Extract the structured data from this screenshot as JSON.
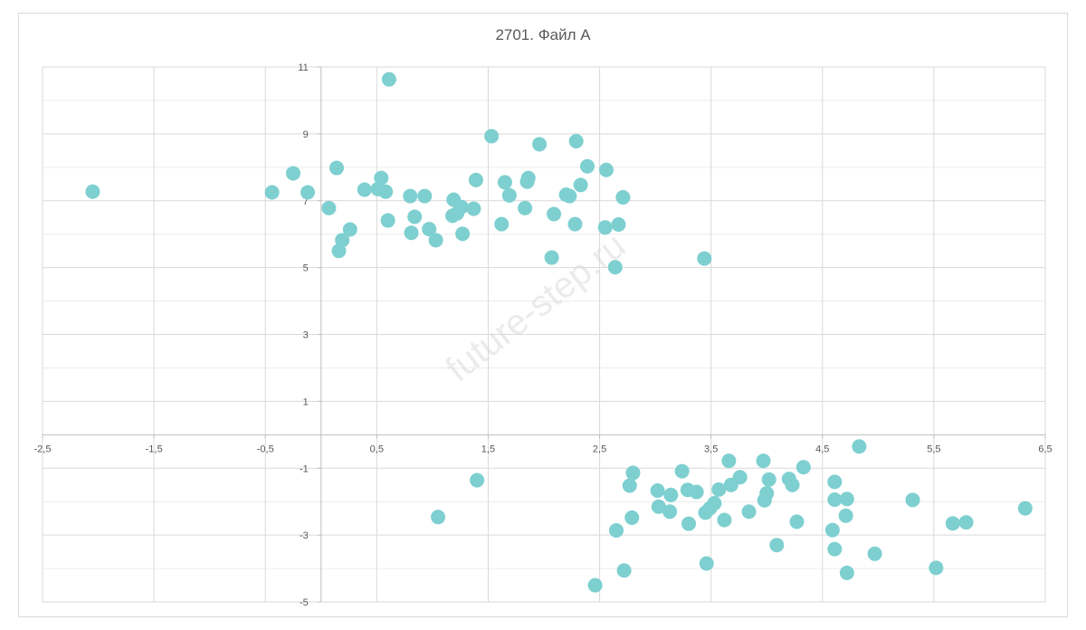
{
  "chart_data": {
    "type": "scatter",
    "title": "2701. Файл А",
    "watermark": "future-step.ru",
    "xlim": [
      -2.5,
      6.5
    ],
    "ylim": [
      -5,
      11
    ],
    "x_ticks": [
      -2.5,
      -1.5,
      -0.5,
      0.5,
      1.5,
      2.5,
      3.5,
      4.5,
      5.5,
      6.5
    ],
    "y_ticks": [
      -5,
      -3,
      -1,
      1,
      3,
      5,
      7,
      9,
      11
    ],
    "x_tick_labels": [
      "-2,5",
      "-1,5",
      "-0,5",
      "0,5",
      "1,5",
      "2,5",
      "3,5",
      "4,5",
      "5,5",
      "6,5"
    ],
    "y_tick_labels": [
      "-5",
      "-3",
      "-1",
      "1",
      "3",
      "5",
      "7",
      "9",
      "11"
    ],
    "grid": true,
    "marker_color": "#7ecfd0",
    "series": [
      {
        "points": [
          [
            -2.05,
            7.27
          ],
          [
            -0.44,
            7.25
          ],
          [
            -0.25,
            7.82
          ],
          [
            -0.12,
            7.25
          ],
          [
            0.07,
            6.78
          ],
          [
            0.14,
            7.98
          ],
          [
            0.16,
            5.5
          ],
          [
            0.19,
            5.82
          ],
          [
            0.26,
            6.14
          ],
          [
            0.39,
            7.33
          ],
          [
            0.51,
            7.35
          ],
          [
            0.54,
            7.68
          ],
          [
            0.58,
            7.27
          ],
          [
            0.6,
            6.41
          ],
          [
            0.61,
            10.63
          ],
          [
            0.8,
            7.14
          ],
          [
            0.81,
            6.04
          ],
          [
            0.84,
            6.52
          ],
          [
            0.93,
            7.14
          ],
          [
            0.97,
            6.15
          ],
          [
            1.03,
            5.82
          ],
          [
            1.18,
            6.55
          ],
          [
            1.19,
            7.03
          ],
          [
            1.22,
            6.62
          ],
          [
            1.26,
            6.81
          ],
          [
            1.27,
            6.01
          ],
          [
            1.37,
            6.76
          ],
          [
            1.39,
            7.62
          ],
          [
            1.53,
            8.93
          ],
          [
            1.62,
            6.3
          ],
          [
            1.65,
            7.55
          ],
          [
            1.69,
            7.16
          ],
          [
            1.83,
            6.78
          ],
          [
            1.85,
            7.57
          ],
          [
            1.86,
            7.68
          ],
          [
            1.96,
            8.69
          ],
          [
            2.07,
            5.3
          ],
          [
            2.09,
            6.6
          ],
          [
            2.2,
            7.18
          ],
          [
            2.23,
            7.14
          ],
          [
            2.28,
            6.3
          ],
          [
            2.29,
            8.78
          ],
          [
            2.33,
            7.47
          ],
          [
            2.39,
            8.03
          ],
          [
            2.55,
            6.2
          ],
          [
            2.56,
            7.92
          ],
          [
            2.64,
            5.01
          ],
          [
            2.67,
            6.29
          ],
          [
            2.71,
            7.1
          ],
          [
            3.44,
            5.27
          ],
          [
            1.05,
            -2.46
          ],
          [
            1.4,
            -1.36
          ],
          [
            2.46,
            -4.5
          ],
          [
            2.65,
            -2.86
          ],
          [
            2.72,
            -4.06
          ],
          [
            2.77,
            -1.52
          ],
          [
            2.79,
            -2.48
          ],
          [
            2.8,
            -1.14
          ],
          [
            3.02,
            -1.67
          ],
          [
            3.03,
            -2.15
          ],
          [
            3.13,
            -2.3
          ],
          [
            3.14,
            -1.8
          ],
          [
            3.24,
            -1.09
          ],
          [
            3.29,
            -1.65
          ],
          [
            3.3,
            -2.66
          ],
          [
            3.37,
            -1.71
          ],
          [
            3.45,
            -2.33
          ],
          [
            3.46,
            -3.85
          ],
          [
            3.49,
            -2.2
          ],
          [
            3.53,
            -2.05
          ],
          [
            3.57,
            -1.64
          ],
          [
            3.62,
            -2.55
          ],
          [
            3.66,
            -0.78
          ],
          [
            3.68,
            -1.5
          ],
          [
            3.76,
            -1.27
          ],
          [
            3.84,
            -2.3
          ],
          [
            3.97,
            -0.78
          ],
          [
            3.98,
            -1.96
          ],
          [
            4.0,
            -1.75
          ],
          [
            4.02,
            -1.34
          ],
          [
            4.09,
            -3.3
          ],
          [
            4.2,
            -1.32
          ],
          [
            4.23,
            -1.5
          ],
          [
            4.27,
            -2.6
          ],
          [
            4.33,
            -0.97
          ],
          [
            4.59,
            -2.85
          ],
          [
            4.61,
            -3.42
          ],
          [
            4.61,
            -1.41
          ],
          [
            4.61,
            -1.94
          ],
          [
            4.71,
            -2.42
          ],
          [
            4.72,
            -1.92
          ],
          [
            4.72,
            -4.13
          ],
          [
            4.83,
            -0.35
          ],
          [
            4.97,
            -3.56
          ],
          [
            5.31,
            -1.95
          ],
          [
            5.52,
            -3.98
          ],
          [
            5.67,
            -2.65
          ],
          [
            5.79,
            -2.62
          ],
          [
            6.32,
            -2.2
          ]
        ]
      }
    ]
  }
}
